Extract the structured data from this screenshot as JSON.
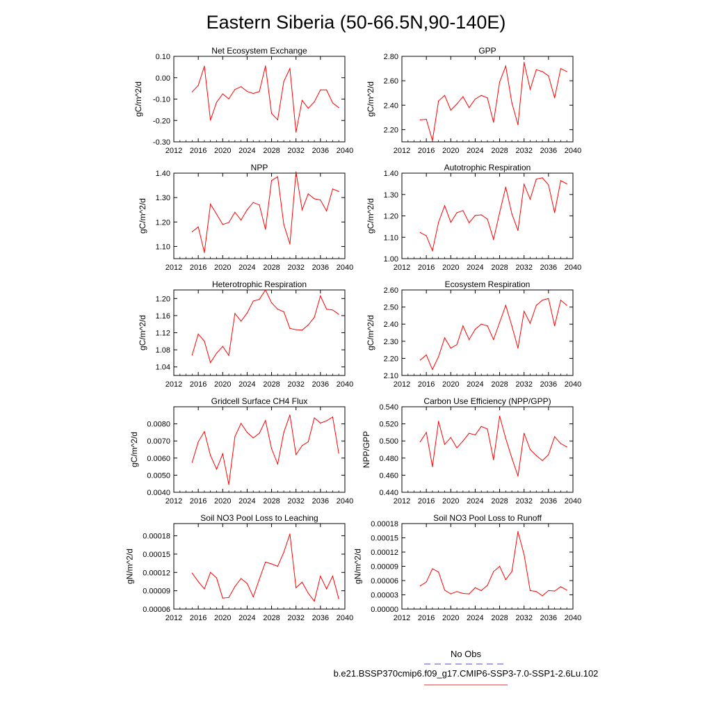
{
  "title": "Eastern Siberia (50-66.5N,90-140E)",
  "series_color": "#ff0000",
  "legend": {
    "obs_label": "No Obs",
    "obs_color": "#4a4ad0",
    "model_label": "b.e21.BSSP370cmip6.f09_g17.CMIP6-SSP3-7.0-SSP1-2.6Lu.102",
    "model_color": "#e03030"
  },
  "chart_data": [
    {
      "type": "line",
      "title": "Net Ecosystem Exchange",
      "xlabel": "",
      "ylabel": "gC/m^2/d",
      "xlim": [
        2012,
        2040
      ],
      "xticks": [
        2012,
        2016,
        2020,
        2024,
        2028,
        2032,
        2036,
        2040
      ],
      "ylim": [
        -0.3,
        0.1
      ],
      "yticks": [
        -0.3,
        -0.2,
        -0.1,
        0.0,
        0.1
      ],
      "ytick_labels": [
        "-0.30",
        "-0.20",
        "-0.10",
        "0.00",
        "0.10"
      ],
      "x": [
        2015,
        2016,
        2017,
        2018,
        2019,
        2020,
        2021,
        2022,
        2023,
        2024,
        2025,
        2026,
        2027,
        2028,
        2029,
        2030,
        2031,
        2032,
        2033,
        2034,
        2035,
        2036,
        2037,
        2038,
        2039
      ],
      "y": [
        -0.066,
        -0.036,
        0.054,
        -0.199,
        -0.115,
        -0.076,
        -0.099,
        -0.055,
        -0.042,
        -0.064,
        -0.074,
        -0.065,
        0.055,
        -0.167,
        -0.197,
        -0.018,
        0.043,
        -0.255,
        -0.106,
        -0.143,
        -0.113,
        -0.057,
        -0.057,
        -0.118,
        -0.14
      ]
    },
    {
      "type": "line",
      "title": "GPP",
      "xlabel": "",
      "ylabel": "gC/m^2/d",
      "xlim": [
        2012,
        2040
      ],
      "xticks": [
        2012,
        2016,
        2020,
        2024,
        2028,
        2032,
        2036,
        2040
      ],
      "ylim": [
        2.1,
        2.8
      ],
      "yticks": [
        2.2,
        2.4,
        2.6,
        2.8
      ],
      "ytick_labels": [
        "2.20",
        "2.40",
        "2.60",
        "2.80"
      ],
      "x": [
        2015,
        2016,
        2017,
        2018,
        2019,
        2020,
        2021,
        2022,
        2023,
        2024,
        2025,
        2026,
        2027,
        2028,
        2029,
        2030,
        2031,
        2032,
        2033,
        2034,
        2035,
        2036,
        2037,
        2038,
        2039
      ],
      "y": [
        2.28,
        2.285,
        2.11,
        2.435,
        2.48,
        2.36,
        2.41,
        2.47,
        2.38,
        2.45,
        2.48,
        2.46,
        2.26,
        2.59,
        2.72,
        2.42,
        2.24,
        2.75,
        2.53,
        2.69,
        2.675,
        2.64,
        2.46,
        2.7,
        2.675
      ]
    },
    {
      "type": "line",
      "title": "NPP",
      "xlabel": "",
      "ylabel": "gC/m^2/d",
      "xlim": [
        2012,
        2040
      ],
      "xticks": [
        2012,
        2016,
        2020,
        2024,
        2028,
        2032,
        2036,
        2040
      ],
      "ylim": [
        1.05,
        1.4
      ],
      "yticks": [
        1.1,
        1.2,
        1.3,
        1.4
      ],
      "ytick_labels": [
        "1.10",
        "1.20",
        "1.30",
        "1.40"
      ],
      "x": [
        2015,
        2016,
        2017,
        2018,
        2019,
        2020,
        2021,
        2022,
        2023,
        2024,
        2025,
        2026,
        2027,
        2028,
        2029,
        2030,
        2031,
        2032,
        2033,
        2034,
        2035,
        2036,
        2037,
        2038,
        2039
      ],
      "y": [
        1.16,
        1.18,
        1.075,
        1.273,
        1.232,
        1.19,
        1.198,
        1.24,
        1.208,
        1.25,
        1.28,
        1.27,
        1.17,
        1.37,
        1.385,
        1.19,
        1.11,
        1.405,
        1.25,
        1.315,
        1.295,
        1.29,
        1.245,
        1.335,
        1.325
      ]
    },
    {
      "type": "line",
      "title": "Autotrophic Respiration",
      "xlabel": "",
      "ylabel": "gC/m^2/d",
      "xlim": [
        2012,
        2040
      ],
      "xticks": [
        2012,
        2016,
        2020,
        2024,
        2028,
        2032,
        2036,
        2040
      ],
      "ylim": [
        1.0,
        1.4
      ],
      "yticks": [
        1.0,
        1.1,
        1.2,
        1.3,
        1.4
      ],
      "ytick_labels": [
        "1.00",
        "1.10",
        "1.20",
        "1.30",
        "1.40"
      ],
      "x": [
        2015,
        2016,
        2017,
        2018,
        2019,
        2020,
        2021,
        2022,
        2023,
        2024,
        2025,
        2026,
        2027,
        2028,
        2029,
        2030,
        2031,
        2032,
        2033,
        2034,
        2035,
        2036,
        2037,
        2038,
        2039
      ],
      "y": [
        1.122,
        1.107,
        1.037,
        1.17,
        1.248,
        1.17,
        1.215,
        1.225,
        1.168,
        1.202,
        1.205,
        1.185,
        1.09,
        1.215,
        1.335,
        1.21,
        1.132,
        1.348,
        1.278,
        1.372,
        1.378,
        1.345,
        1.215,
        1.365,
        1.35
      ]
    },
    {
      "type": "line",
      "title": "Heterotrophic Respiration",
      "xlabel": "",
      "ylabel": "gC/m^2/d",
      "xlim": [
        2012,
        2040
      ],
      "xticks": [
        2012,
        2016,
        2020,
        2024,
        2028,
        2032,
        2036,
        2040
      ],
      "ylim": [
        1.02,
        1.22
      ],
      "yticks": [
        1.04,
        1.08,
        1.12,
        1.16,
        1.2
      ],
      "ytick_labels": [
        "1.04",
        "1.08",
        "1.12",
        "1.16",
        "1.20"
      ],
      "x": [
        2015,
        2016,
        2017,
        2018,
        2019,
        2020,
        2021,
        2022,
        2023,
        2024,
        2025,
        2026,
        2027,
        2028,
        2029,
        2030,
        2031,
        2032,
        2033,
        2034,
        2035,
        2036,
        2037,
        2038,
        2039
      ],
      "y": [
        1.068,
        1.117,
        1.1,
        1.05,
        1.072,
        1.088,
        1.067,
        1.165,
        1.147,
        1.166,
        1.194,
        1.198,
        1.22,
        1.19,
        1.175,
        1.169,
        1.13,
        1.127,
        1.126,
        1.138,
        1.156,
        1.206,
        1.175,
        1.173,
        1.163
      ]
    },
    {
      "type": "line",
      "title": "Ecosystem Respiration",
      "xlabel": "",
      "ylabel": "gC/m^2/d",
      "xlim": [
        2012,
        2040
      ],
      "xticks": [
        2012,
        2016,
        2020,
        2024,
        2028,
        2032,
        2036,
        2040
      ],
      "ylim": [
        2.1,
        2.6
      ],
      "yticks": [
        2.1,
        2.2,
        2.3,
        2.4,
        2.5,
        2.6
      ],
      "ytick_labels": [
        "2.10",
        "2.20",
        "2.30",
        "2.40",
        "2.50",
        "2.60"
      ],
      "x": [
        2015,
        2016,
        2017,
        2018,
        2019,
        2020,
        2021,
        2022,
        2023,
        2024,
        2025,
        2026,
        2027,
        2028,
        2029,
        2030,
        2031,
        2032,
        2033,
        2034,
        2035,
        2036,
        2037,
        2038,
        2039
      ],
      "y": [
        2.19,
        2.22,
        2.135,
        2.21,
        2.32,
        2.26,
        2.28,
        2.39,
        2.31,
        2.37,
        2.4,
        2.39,
        2.31,
        2.41,
        2.51,
        2.39,
        2.26,
        2.475,
        2.405,
        2.51,
        2.54,
        2.55,
        2.39,
        2.54,
        2.51
      ]
    },
    {
      "type": "line",
      "title": "Gridcell Surface CH4 Flux",
      "xlabel": "",
      "ylabel": "gC/m^2/d",
      "xlim": [
        2012,
        2040
      ],
      "xticks": [
        2012,
        2016,
        2020,
        2024,
        2028,
        2032,
        2036,
        2040
      ],
      "ylim": [
        0.004,
        0.009
      ],
      "yticks": [
        0.004,
        0.005,
        0.006,
        0.007,
        0.008
      ],
      "ytick_labels": [
        "0.0040",
        "0.0050",
        "0.0060",
        "0.0070",
        "0.0080"
      ],
      "x": [
        2015,
        2016,
        2017,
        2018,
        2019,
        2020,
        2021,
        2022,
        2023,
        2024,
        2025,
        2026,
        2027,
        2028,
        2029,
        2030,
        2031,
        2032,
        2033,
        2034,
        2035,
        2036,
        2037,
        2038,
        2039
      ],
      "y": [
        0.00575,
        0.00695,
        0.00755,
        0.00615,
        0.00535,
        0.00625,
        0.00445,
        0.00725,
        0.00803,
        0.0075,
        0.00718,
        0.00745,
        0.0082,
        0.00655,
        0.00565,
        0.0075,
        0.00852,
        0.0062,
        0.00673,
        0.00695,
        0.00835,
        0.00805,
        0.00818,
        0.0084,
        0.00628
      ]
    },
    {
      "type": "line",
      "title": "Carbon Use Efficiency (NPP/GPP)",
      "xlabel": "",
      "ylabel": "NPP/GPP",
      "xlim": [
        2012,
        2040
      ],
      "xticks": [
        2012,
        2016,
        2020,
        2024,
        2028,
        2032,
        2036,
        2040
      ],
      "ylim": [
        0.44,
        0.54
      ],
      "yticks": [
        0.44,
        0.46,
        0.48,
        0.5,
        0.52,
        0.54
      ],
      "ytick_labels": [
        "0.440",
        "0.460",
        "0.480",
        "0.500",
        "0.520",
        "0.540"
      ],
      "x": [
        2015,
        2016,
        2017,
        2018,
        2019,
        2020,
        2021,
        2022,
        2023,
        2024,
        2025,
        2026,
        2027,
        2028,
        2029,
        2030,
        2031,
        2032,
        2033,
        2034,
        2035,
        2036,
        2037,
        2038,
        2039
      ],
      "y": [
        0.499,
        0.51,
        0.47,
        0.523,
        0.496,
        0.504,
        0.492,
        0.5,
        0.509,
        0.507,
        0.517,
        0.514,
        0.478,
        0.529,
        0.503,
        0.48,
        0.459,
        0.509,
        0.49,
        0.483,
        0.477,
        0.484,
        0.505,
        0.497,
        0.493
      ]
    },
    {
      "type": "line",
      "title": "Soil NO3 Pool Loss to Leaching",
      "xlabel": "",
      "ylabel": "gN/m^2/d",
      "xlim": [
        2012,
        2040
      ],
      "xticks": [
        2012,
        2016,
        2020,
        2024,
        2028,
        2032,
        2036,
        2040
      ],
      "ylim": [
        6e-05,
        0.0002
      ],
      "yticks": [
        6e-05,
        9e-05,
        0.00012,
        0.00015,
        0.00018
      ],
      "ytick_labels": [
        "0.00006",
        "0.00009",
        "0.00012",
        "0.00015",
        "0.00018"
      ],
      "x": [
        2015,
        2016,
        2017,
        2018,
        2019,
        2020,
        2021,
        2022,
        2023,
        2024,
        2025,
        2026,
        2027,
        2028,
        2029,
        2030,
        2031,
        2032,
        2033,
        2034,
        2035,
        2036,
        2037,
        2038,
        2039
      ],
      "y": [
        0.000119,
        0.000105,
        9.3e-05,
        0.00012,
        0.000111,
        7.8e-05,
        7.9e-05,
        9.7e-05,
        0.00011,
        0.000102,
        8e-05,
        0.000109,
        0.000137,
        0.000134,
        0.00013,
        0.000153,
        0.000183,
        9.5e-05,
        0.000104,
        8.6e-05,
        7.3e-05,
        0.000114,
        9.3e-05,
        0.000114,
        7.7e-05
      ]
    },
    {
      "type": "line",
      "title": "Soil NO3 Pool Loss to Runoff",
      "xlabel": "",
      "ylabel": "gN/m^2/d",
      "xlim": [
        2012,
        2040
      ],
      "xticks": [
        2012,
        2016,
        2020,
        2024,
        2028,
        2032,
        2036,
        2040
      ],
      "ylim": [
        0.0,
        0.00018
      ],
      "yticks": [
        0.0,
        3e-05,
        6e-05,
        9e-05,
        0.00012,
        0.00015,
        0.00018
      ],
      "ytick_labels": [
        "0.00000",
        "0.00003",
        "0.00006",
        "0.00009",
        "0.00012",
        "0.00015",
        "0.00018"
      ],
      "x": [
        2015,
        2016,
        2017,
        2018,
        2019,
        2020,
        2021,
        2022,
        2023,
        2024,
        2025,
        2026,
        2027,
        2028,
        2029,
        2030,
        2031,
        2032,
        2033,
        2034,
        2035,
        2036,
        2037,
        2038,
        2039
      ],
      "y": [
        4.9e-05,
        5.7e-05,
        8.5e-05,
        7.8e-05,
        4e-05,
        3.2e-05,
        3.7e-05,
        3.3e-05,
        3.2e-05,
        4.5e-05,
        3.9e-05,
        5e-05,
        7.9e-05,
        9e-05,
        6.2e-05,
        7.9e-05,
        0.000163,
        0.000115,
        3.9e-05,
        3.7e-05,
        2.8e-05,
        3.9e-05,
        3.8e-05,
        4.7e-05,
        4e-05
      ]
    }
  ]
}
